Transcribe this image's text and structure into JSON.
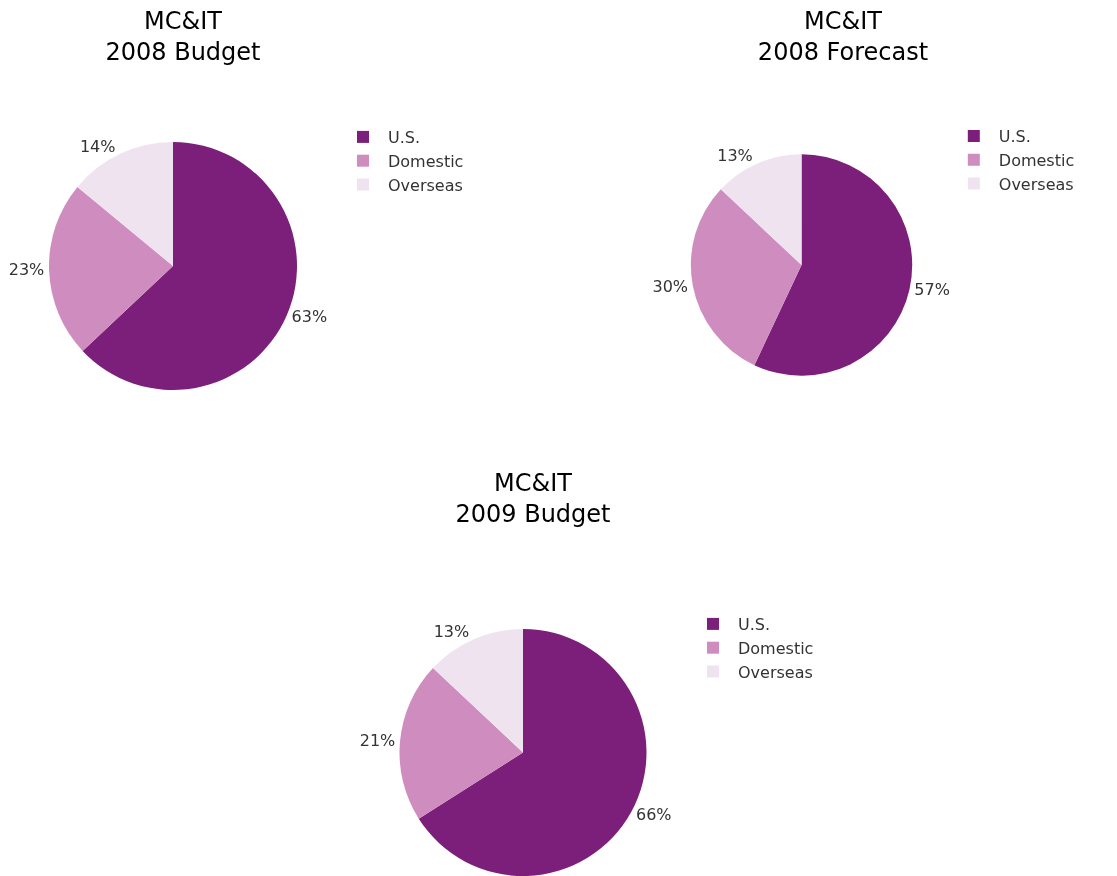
{
  "chart_data": [
    {
      "type": "pie",
      "title": "MC&IT\n2008 Budget",
      "categories": [
        "U.S.",
        "Domestic",
        "Overseas"
      ],
      "values": [
        63,
        23,
        14
      ],
      "value_labels": [
        "63%",
        "23%",
        "14%"
      ],
      "colors": [
        "#7b1f7b",
        "#cf8dbf",
        "#efe3ef"
      ],
      "legend": "right"
    },
    {
      "type": "pie",
      "title": "MC&IT\n2008 Forecast",
      "categories": [
        "U.S.",
        "Domestic",
        "Overseas"
      ],
      "values": [
        57,
        30,
        13
      ],
      "value_labels": [
        "57%",
        "30%",
        "13%"
      ],
      "colors": [
        "#7b1f7b",
        "#cf8dbf",
        "#efe3ef"
      ],
      "legend": "right"
    },
    {
      "type": "pie",
      "title": "MC&IT\n2009 Budget",
      "categories": [
        "U.S.",
        "Domestic",
        "Overseas"
      ],
      "values": [
        66,
        21,
        13
      ],
      "value_labels": [
        "66%",
        "21%",
        "13%"
      ],
      "colors": [
        "#7b1f7b",
        "#cf8dbf",
        "#efe3ef"
      ],
      "legend": "right"
    }
  ]
}
